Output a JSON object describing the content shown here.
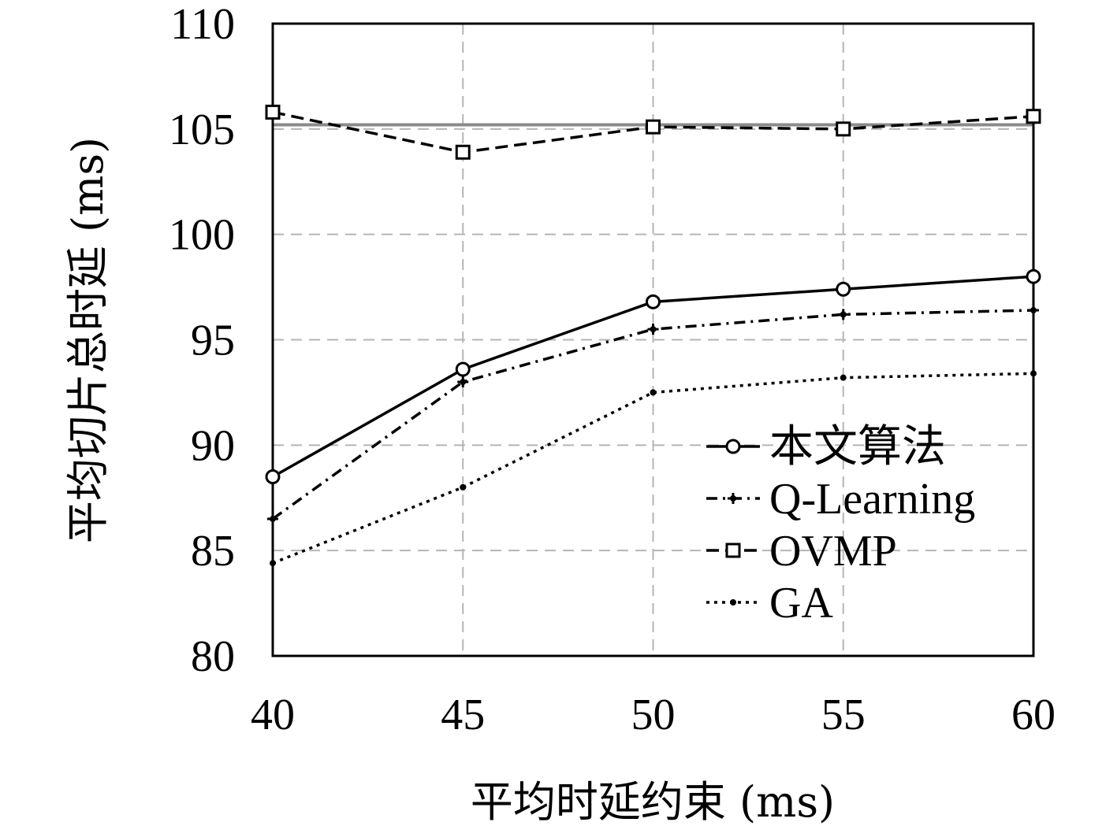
{
  "chart_data": {
    "type": "line",
    "xlabel": "平均时延约束 (ms)",
    "ylabel": "平均切片总时延 (ms)",
    "x": [
      40,
      45,
      50,
      55,
      60
    ],
    "xlim": [
      40,
      60
    ],
    "ylim": [
      80,
      110
    ],
    "xticks": [
      "40",
      "45",
      "50",
      "55",
      "60"
    ],
    "yticks": [
      "80",
      "85",
      "90",
      "95",
      "100",
      "105",
      "110"
    ],
    "grid": true,
    "legend_position": "lower-right",
    "reference_line": {
      "y": 105.2,
      "color": "#8a8a8a"
    },
    "series": [
      {
        "name": "本文算法",
        "values": [
          88.5,
          93.6,
          96.8,
          97.4,
          98.0
        ],
        "line_style": "solid",
        "marker": "circle"
      },
      {
        "name": "Q-Learning",
        "values": [
          86.5,
          93.0,
          95.5,
          96.2,
          96.4
        ],
        "line_style": "dashdot",
        "marker": "plus"
      },
      {
        "name": "OVMP",
        "values": [
          105.8,
          103.9,
          105.1,
          105.0,
          105.6
        ],
        "line_style": "dashed",
        "marker": "square"
      },
      {
        "name": "GA",
        "values": [
          84.4,
          88.0,
          92.5,
          93.2,
          93.4
        ],
        "line_style": "dotted",
        "marker": "dot"
      }
    ]
  }
}
